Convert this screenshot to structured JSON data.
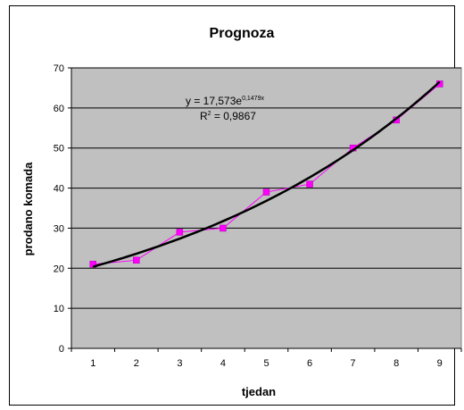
{
  "chart_data": {
    "type": "scatter",
    "title": "Prognoza",
    "xlabel": "tjedan",
    "ylabel": "prodano komada",
    "x": [
      1,
      2,
      3,
      4,
      5,
      6,
      7,
      8,
      9
    ],
    "series": [
      {
        "values": [
          21,
          22,
          29,
          30,
          39,
          41,
          50,
          57,
          66
        ],
        "color": "#ff00ff",
        "style": "markers-with-line"
      }
    ],
    "trendline": {
      "type": "exponential",
      "a": 17.573,
      "b": 0.1479,
      "equation_base": "y = 17,573e",
      "equation_exp": "0,1479x",
      "r2_prefix": "R",
      "r2_exp": "2",
      "r2_value": " = 0,9867",
      "color": "#000000"
    },
    "xlim": [
      0.5,
      9.5
    ],
    "ylim": [
      0,
      70
    ],
    "yticks": [
      "0",
      "10",
      "20",
      "30",
      "40",
      "50",
      "60",
      "70"
    ],
    "xticks": [
      "1",
      "2",
      "3",
      "4",
      "5",
      "6",
      "7",
      "8",
      "9"
    ],
    "grid": true,
    "plot_background": "#c0c0c0",
    "legend": "none"
  }
}
